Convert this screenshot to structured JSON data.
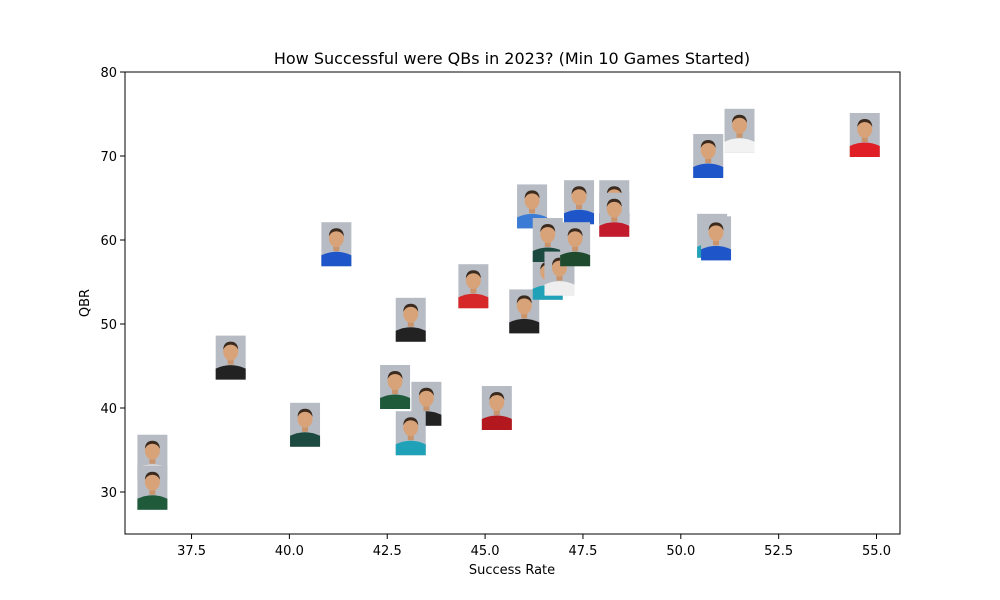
{
  "chart_data": {
    "type": "scatter",
    "title": "How Successful were QBs in 2023? (Min 10 Games Started)",
    "xlabel": "Success Rate",
    "ylabel": "QBR",
    "xlim": [
      35.8,
      55.6
    ],
    "ylim": [
      25,
      80
    ],
    "xticks": [
      "37.5",
      "40.0",
      "42.5",
      "45.0",
      "47.5",
      "50.0",
      "52.5",
      "55.0"
    ],
    "yticks": [
      "30",
      "40",
      "50",
      "60",
      "70",
      "80"
    ],
    "grid": false,
    "marker": "player-headshot",
    "points": [
      {
        "x": 36.5,
        "y": 34.2,
        "jersey": "#d9d9d9"
      },
      {
        "x": 36.5,
        "y": 30.5,
        "jersey": "#1f5a3a"
      },
      {
        "x": 38.5,
        "y": 46.0,
        "jersey": "#222222"
      },
      {
        "x": 40.4,
        "y": 38.0,
        "jersey": "#1d4a40"
      },
      {
        "x": 41.2,
        "y": 59.5,
        "jersey": "#1e56c9"
      },
      {
        "x": 42.7,
        "y": 42.5,
        "jersey": "#1f5a3a"
      },
      {
        "x": 43.1,
        "y": 50.5,
        "jersey": "#222222"
      },
      {
        "x": 43.5,
        "y": 40.5,
        "jersey": "#222222"
      },
      {
        "x": 43.1,
        "y": 37.0,
        "jersey": "#1fa2b8"
      },
      {
        "x": 44.7,
        "y": 54.5,
        "jersey": "#d62828"
      },
      {
        "x": 45.3,
        "y": 40.0,
        "jersey": "#b3181e"
      },
      {
        "x": 46.0,
        "y": 51.5,
        "jersey": "#222222"
      },
      {
        "x": 46.2,
        "y": 64.0,
        "jersey": "#3a7bd5"
      },
      {
        "x": 46.6,
        "y": 55.5,
        "jersey": "#1fa2b8"
      },
      {
        "x": 46.6,
        "y": 60.0,
        "jersey": "#1d4a40"
      },
      {
        "x": 46.9,
        "y": 56.0,
        "jersey": "#eeeeee"
      },
      {
        "x": 47.4,
        "y": 64.5,
        "jersey": "#1e56c9"
      },
      {
        "x": 47.3,
        "y": 59.5,
        "jersey": "#1f4a2e"
      },
      {
        "x": 48.3,
        "y": 64.5,
        "jersey": "#4b2a8a"
      },
      {
        "x": 48.3,
        "y": 63.0,
        "jersey": "#c21b2b"
      },
      {
        "x": 50.7,
        "y": 70.0,
        "jersey": "#1e56c9"
      },
      {
        "x": 50.8,
        "y": 60.5,
        "jersey": "#1fa2b8"
      },
      {
        "x": 50.9,
        "y": 60.2,
        "jersey": "#1e56c9"
      },
      {
        "x": 51.5,
        "y": 73.0,
        "jersey": "#f2f2f2"
      },
      {
        "x": 54.7,
        "y": 72.5,
        "jersey": "#e01e25"
      }
    ]
  }
}
